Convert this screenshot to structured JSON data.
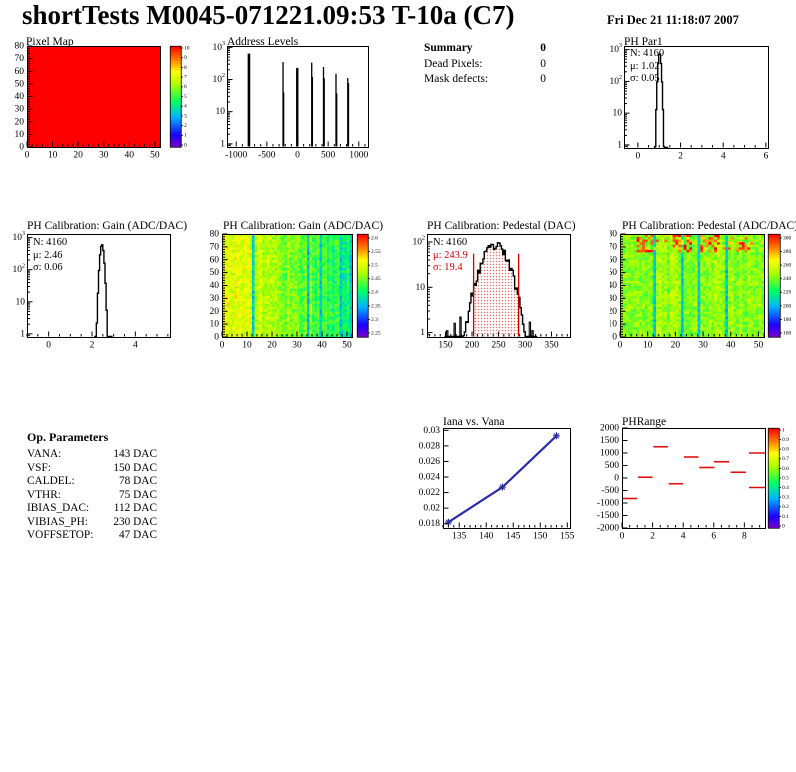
{
  "header": {
    "title": "shortTests M0045-071221.09:53 T-10a (C7)",
    "timestamp": "Fri Dec 21 11:18:07 2007"
  },
  "summary": {
    "heading": "Summary",
    "heading_value": "0",
    "rows": [
      {
        "label": "Dead Pixels:",
        "value": "0"
      },
      {
        "label": "Mask defects:",
        "value": "0"
      }
    ]
  },
  "op_parameters": {
    "heading": "Op. Parameters",
    "rows": [
      {
        "label": "VANA:",
        "value": "143 DAC"
      },
      {
        "label": "VSF:",
        "value": "150 DAC"
      },
      {
        "label": "CALDEL:",
        "value": "78 DAC"
      },
      {
        "label": "VTHR:",
        "value": "75 DAC"
      },
      {
        "label": "IBIAS_DAC:",
        "value": "112 DAC"
      },
      {
        "label": "VIBIAS_PH:",
        "value": "230 DAC"
      },
      {
        "label": "VOFFSETOP:",
        "value": "47 DAC"
      }
    ]
  },
  "chart_data": [
    {
      "id": "pixel_map",
      "type": "heatmap",
      "render": "heatmap",
      "title": "Pixel Map",
      "xlim": [
        0,
        52
      ],
      "xticks": [
        0,
        10,
        20,
        30,
        40,
        50
      ],
      "xminor": 5,
      "ylim": [
        0,
        80
      ],
      "yticks": [
        0,
        10,
        20,
        30,
        40,
        50,
        60,
        70,
        80
      ],
      "yminor": 5,
      "frame": [
        27,
        10,
        133,
        101
      ],
      "fill": "uniform",
      "uniform_value": 10,
      "zlim": [
        0,
        10
      ],
      "cb": [
        170,
        10,
        11,
        101
      ],
      "colorbar": {
        "labels": [
          "10",
          "9",
          "8",
          "7",
          "6",
          "5",
          "4",
          "3",
          "2",
          "1",
          "0"
        ],
        "pad": 2
      }
    },
    {
      "id": "address_levels",
      "type": "bar",
      "render": "spikes",
      "title": "Address Levels",
      "xlim": [
        -1150,
        1150
      ],
      "xticks": [
        -1000,
        -500,
        0,
        500,
        1000
      ],
      "xminor": 5,
      "ylog": true,
      "ylim": [
        0.8,
        1100
      ],
      "frame": [
        28,
        10,
        141,
        101
      ],
      "spikes": [
        [
          -792,
          640,
          2.6
        ],
        [
          -236,
          350,
          1.3
        ],
        [
          -226,
          40,
          1.3
        ],
        [
          -4,
          230,
          2.4
        ],
        [
          4,
          1.2,
          1.2
        ],
        [
          232,
          335,
          1.3
        ],
        [
          243,
          120,
          1.3
        ],
        [
          424,
          245,
          1.3
        ],
        [
          436,
          110,
          1.3
        ],
        [
          628,
          152,
          1.3
        ],
        [
          640,
          37,
          1.3
        ],
        [
          820,
          112,
          1.3
        ],
        [
          832,
          78,
          1.3
        ]
      ]
    },
    {
      "id": "ph_par1",
      "type": "bar",
      "render": "hist",
      "title": "PH Par1",
      "xlim": [
        -0.65,
        6.1
      ],
      "xticks": [
        0,
        2,
        4,
        6
      ],
      "xminor": 4,
      "ylog": true,
      "ylim": [
        0.8,
        1300
      ],
      "frame": [
        14,
        10,
        144,
        102
      ],
      "gauss": {
        "mu": 1.02,
        "sigma": 0.055,
        "peak": 780,
        "bin": 0.045,
        "from": 0.75,
        "to": 1.4,
        "seed": 11
      },
      "stats": {
        "n": "N: 4160",
        "mu": "μ: 1.02",
        "sigma": "σ: 0.05"
      }
    },
    {
      "id": "gain_hist",
      "type": "bar",
      "render": "hist",
      "title": "PH Calibration: Gain (ADC/DAC)",
      "xlim": [
        -1,
        5.6
      ],
      "xticks": [
        0,
        2,
        4
      ],
      "xminor": 4,
      "ylog": true,
      "ylim": [
        0.8,
        1300
      ],
      "frame": [
        27,
        15,
        143,
        103
      ],
      "gauss": {
        "mu": 2.46,
        "sigma": 0.07,
        "peak": 610,
        "bin": 0.05,
        "from": 2.1,
        "to": 2.95,
        "seed": 5
      },
      "stats": {
        "n": "N: 4160",
        "mu": "μ: 2.46",
        "sigma": "σ: 0.06"
      }
    },
    {
      "id": "gain_map",
      "type": "heatmap",
      "render": "heatmap",
      "title": "PH Calibration: Gain (ADC/DAC)",
      "xlim": [
        0,
        52
      ],
      "xticks": [
        0,
        10,
        20,
        30,
        40,
        50
      ],
      "xminor": 5,
      "ylim": [
        0,
        80
      ],
      "yticks": [
        0,
        10,
        20,
        30,
        40,
        50,
        60,
        70,
        80
      ],
      "yminor": 5,
      "frame": [
        23,
        15,
        130,
        103
      ],
      "fill": "noise",
      "noise": {
        "seed": 17,
        "cols": 52,
        "rows": 40,
        "profile": "warm-left",
        "cyan_cols": [
          12,
          34,
          39,
          47,
          51
        ],
        "jitter": 0.07
      },
      "cb": [
        158,
        15,
        11,
        103
      ],
      "colorbar": {
        "labels": [
          "2.6",
          "2.55",
          "2.5",
          "2.45",
          "2.4",
          "2.35",
          "2.3",
          "2.25"
        ],
        "pad": 4
      }
    },
    {
      "id": "pedestal_hist",
      "type": "bar",
      "render": "hist",
      "title": "PH Calibration: Pedestal (DAC)",
      "xlim": [
        115,
        385
      ],
      "xticks": [
        150,
        200,
        250,
        300,
        350
      ],
      "xminor": 5,
      "ylog": true,
      "ylim": [
        0.8,
        150
      ],
      "frame": [
        27,
        15,
        143,
        103
      ],
      "gauss": {
        "mu": 243.9,
        "sigma": 19.4,
        "peak": 80,
        "bin": 2.5,
        "from": 148,
        "to": 322,
        "seed": 23,
        "noisy": true,
        "fill_between": [
          203,
          288
        ],
        "extra": [
          [
            152,
            1.1
          ],
          [
            166,
            1.6
          ],
          [
            177,
            2.2
          ],
          [
            308,
            1.7
          ],
          [
            313,
            1.1
          ]
        ]
      },
      "red_lines": [
        203,
        288
      ],
      "red_line_top": 55,
      "stats": {
        "n": "N: 4160",
        "mu": "μ: 243.9",
        "sigma": "σ: 19.4"
      }
    },
    {
      "id": "pedestal_map",
      "type": "heatmap",
      "render": "heatmap",
      "title": "PH Calibration: Pedestal (ADC/DAC)",
      "xlim": [
        0,
        52
      ],
      "xticks": [
        0,
        10,
        20,
        30,
        40,
        50
      ],
      "xminor": 5,
      "ylim": [
        0,
        80
      ],
      "yticks": [
        0,
        10,
        20,
        30,
        40,
        50,
        60,
        70,
        80
      ],
      "yminor": 5,
      "frame": [
        10,
        15,
        144,
        103
      ],
      "fill": "noise",
      "noise": {
        "seed": 29,
        "cols": 52,
        "rows": 40,
        "profile": "flat",
        "base": 0.6,
        "cyan_cols": [
          12,
          22,
          28,
          38
        ],
        "jitter": 0.07,
        "hot_top": true,
        "hot_cols": [
          [
            6,
            11
          ],
          [
            19,
            25
          ],
          [
            29,
            35
          ],
          [
            43,
            46
          ]
        ]
      },
      "cb": [
        158,
        15,
        12,
        103
      ],
      "colorbar": {
        "labels": [
          "300",
          "280",
          "260",
          "240",
          "220",
          "200",
          "180",
          "160"
        ],
        "pad": 4
      }
    },
    {
      "id": "iana_vana",
      "type": "line",
      "render": "line",
      "title": "Iana vs. Vana",
      "xlim": [
        132,
        155.5
      ],
      "xticks": [
        135,
        140,
        145,
        150,
        155
      ],
      "xminor": 5,
      "ylim": [
        0.01745,
        0.0303
      ],
      "yticks": [
        0.018,
        0.02,
        0.022,
        0.024,
        0.026,
        0.028,
        0.03
      ],
      "ylabels": [
        "0.018",
        "0.02",
        "0.022",
        "0.024",
        "0.026",
        "0.028",
        "0.03"
      ],
      "yminor": 1,
      "frame": [
        43,
        18,
        127,
        100
      ],
      "points": [
        [
          133,
          0.0182
        ],
        [
          143,
          0.0227
        ],
        [
          153,
          0.0293
        ]
      ],
      "color": "#2a2aa8"
    },
    {
      "id": "ph_range",
      "type": "bar",
      "render": "segments",
      "title": "PHRange",
      "xlim": [
        0,
        9.35
      ],
      "xticks": [
        0,
        2,
        4,
        6,
        8
      ],
      "xminor": 4,
      "ylim": [
        -2000,
        2000
      ],
      "yticks": [
        -2000,
        -1500,
        -1000,
        -500,
        0,
        500,
        1000,
        1500,
        2000
      ],
      "ylabels": [
        "-2000",
        "-1500",
        "-1000",
        "-500",
        "0",
        "500",
        "1000",
        "1500",
        "2000"
      ],
      "yminor": 1,
      "frame": [
        25,
        18,
        143,
        100
      ],
      "segments": [
        [
          0,
          1,
          -820
        ],
        [
          1.05,
          2,
          30
        ],
        [
          2.05,
          3,
          1250
        ],
        [
          3.05,
          4,
          -230
        ],
        [
          4.05,
          5,
          840
        ],
        [
          5.05,
          6.05,
          420
        ],
        [
          6.0,
          7.0,
          650
        ],
        [
          7.1,
          8.1,
          230
        ],
        [
          8.3,
          9.35,
          1000
        ],
        [
          8.3,
          9.35,
          -380
        ]
      ],
      "color": "#dd1111",
      "cb": [
        171,
        18,
        11,
        100
      ],
      "colorbar": {
        "labels": [
          "1",
          "0.9",
          "0.8",
          "0.7",
          "0.6",
          "0.5",
          "0.4",
          "0.3",
          "0.2",
          "0.1",
          "0"
        ],
        "pad": 2
      }
    }
  ]
}
